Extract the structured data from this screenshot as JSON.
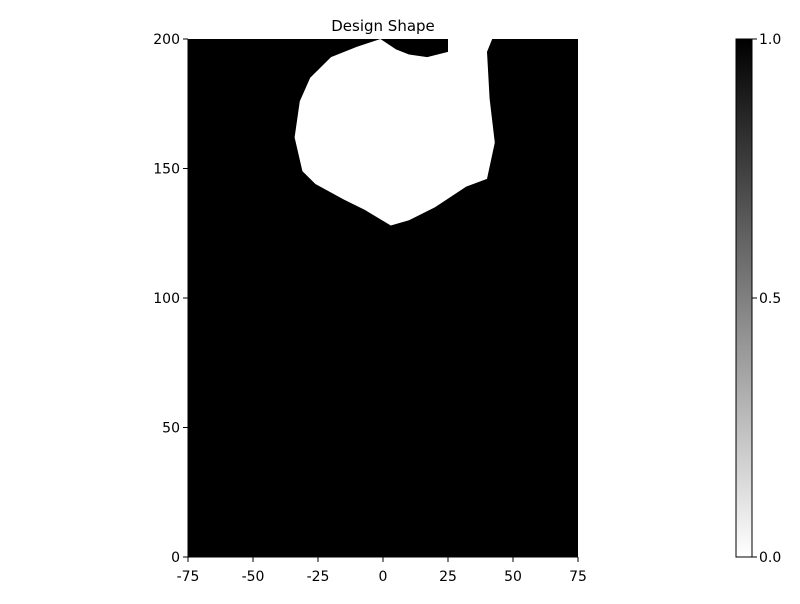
{
  "chart_data": {
    "type": "heatmap",
    "title": "Design Shape",
    "xlabel": "",
    "ylabel": "",
    "xlim": [
      -75,
      75
    ],
    "ylim": [
      0,
      200
    ],
    "x_ticks": [
      -75,
      -50,
      -25,
      0,
      25,
      50,
      75
    ],
    "y_ticks": [
      0,
      50,
      100,
      150,
      200
    ],
    "grid": false,
    "colormap": {
      "low_color": "#ffffff",
      "high_color": "#000000",
      "range": [
        0.0,
        1.0
      ]
    },
    "colorbar": {
      "ticks": [
        "0.0",
        "0.5",
        "1.0"
      ],
      "placement": "right"
    },
    "background_value": 1.0,
    "regions": [
      {
        "value": 0.0,
        "boundary": [
          [
            -1,
            200
          ],
          [
            -10,
            197
          ],
          [
            -20,
            193
          ],
          [
            -28,
            185
          ],
          [
            -32,
            176
          ],
          [
            -34,
            162
          ],
          [
            -31,
            149
          ],
          [
            -26,
            144
          ],
          [
            -15,
            138
          ],
          [
            -7,
            134
          ],
          [
            3,
            128
          ],
          [
            10,
            130
          ],
          [
            20,
            135
          ],
          [
            32,
            143
          ],
          [
            40,
            146
          ],
          [
            43,
            160
          ],
          [
            41,
            177
          ],
          [
            40,
            195
          ],
          [
            42,
            200
          ],
          [
            25,
            200
          ],
          [
            25,
            195
          ],
          [
            17,
            193
          ],
          [
            10,
            194
          ],
          [
            5,
            196
          ]
        ]
      }
    ]
  }
}
